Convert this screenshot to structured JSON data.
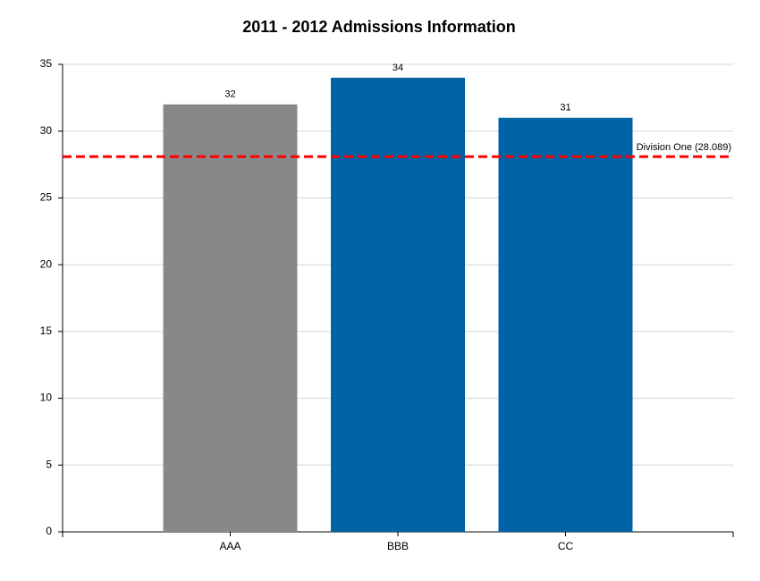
{
  "chart_data": {
    "type": "bar",
    "title": "2011 - 2012 Admissions Information",
    "categories": [
      "AAA",
      "BBB",
      "CC"
    ],
    "values": [
      32,
      34,
      31
    ],
    "colors": [
      "#888888",
      "#0063a6",
      "#0063a6"
    ],
    "ylim": [
      0,
      35
    ],
    "yticks": [
      0,
      5,
      10,
      15,
      20,
      25,
      30,
      35
    ],
    "grid": true,
    "reference_line": {
      "label": "Division One (28.089)",
      "value": 28.089,
      "color": "#ff0000"
    }
  }
}
